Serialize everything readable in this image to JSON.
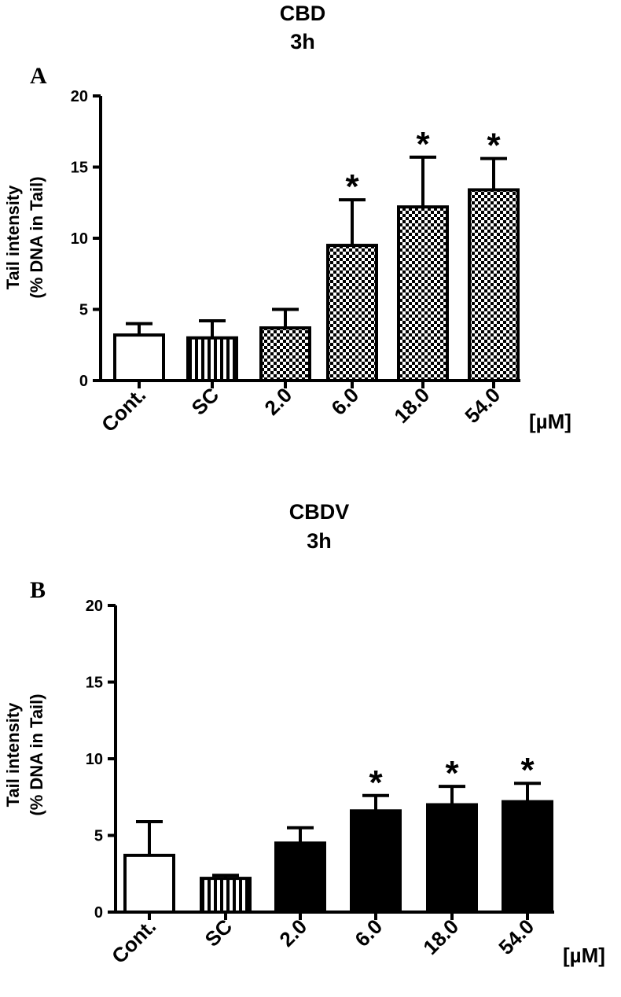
{
  "chart_data": [
    {
      "type": "bar",
      "panel_label": "A",
      "title_line1": "CBD",
      "title_line2": "3h",
      "ylabel_line1": "Tail intensity",
      "ylabel_line2": "(%  DNA in Tail)",
      "categories": [
        "Cont.",
        "SC",
        "2.0",
        "6.0",
        "18.0",
        "54.0"
      ],
      "unit_label": "[µM]",
      "values": [
        3.2,
        3.0,
        3.7,
        9.5,
        12.2,
        13.4
      ],
      "errors": [
        0.8,
        1.2,
        1.3,
        3.2,
        3.5,
        2.2
      ],
      "significant": [
        "",
        "",
        "",
        "*",
        "*",
        "*"
      ],
      "patterns": [
        "white",
        "vstripes",
        "checker",
        "checker",
        "checker",
        "checker"
      ],
      "ylim": [
        0,
        20
      ],
      "yticks": [
        "0",
        "5",
        "10",
        "15",
        "20"
      ],
      "grid": false
    },
    {
      "type": "bar",
      "panel_label": "B",
      "title_line1": "CBDV",
      "title_line2": "3h",
      "ylabel_line1": "Tail intensity",
      "ylabel_line2": "(%  DNA in Tail)",
      "categories": [
        "Cont.",
        "SC",
        "2.0",
        "6.0",
        "18.0",
        "54.0"
      ],
      "unit_label": "[µM]",
      "values": [
        3.7,
        2.2,
        4.5,
        6.6,
        7.0,
        7.2
      ],
      "errors": [
        2.2,
        0.2,
        1.0,
        1.0,
        1.2,
        1.2
      ],
      "significant": [
        "",
        "",
        "",
        "*",
        "*",
        "*"
      ],
      "patterns": [
        "white",
        "vstripes",
        "black",
        "black",
        "black",
        "black"
      ],
      "ylim": [
        0,
        20
      ],
      "yticks": [
        "0",
        "5",
        "10",
        "15",
        "20"
      ],
      "grid": false
    }
  ]
}
